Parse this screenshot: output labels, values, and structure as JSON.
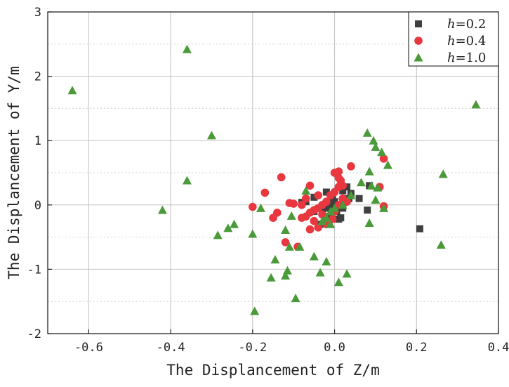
{
  "chart_data": {
    "type": "scatter",
    "xlabel": "The Displancement of Z/m",
    "ylabel": "The Displancement of Y/m",
    "xlim": [
      -0.7,
      0.4
    ],
    "ylim": [
      -2,
      3
    ],
    "x_ticks": [
      -0.6,
      -0.4,
      -0.2,
      0.0,
      0.2,
      0.4
    ],
    "x_tick_labels": [
      "-0.6",
      "-0.4",
      "-0.2",
      "0.0",
      "0.2",
      "0.4"
    ],
    "y_ticks": [
      -2,
      -1,
      0,
      1,
      2,
      3
    ],
    "y_tick_labels": [
      "-2",
      "-1",
      "0",
      "1",
      "2",
      "3"
    ],
    "grid": true,
    "legend_position": "top-right",
    "series": [
      {
        "name": "h=0.2",
        "legend_var": "h",
        "legend_value": "=0.2",
        "marker": "square",
        "color": "#3f3f3f",
        "points": [
          [
            0.208,
            -0.37
          ],
          [
            0.085,
            0.3
          ],
          [
            0.08,
            -0.08
          ],
          [
            0.06,
            0.1
          ],
          [
            0.04,
            0.18
          ],
          [
            0.03,
            0.28
          ],
          [
            0.035,
            0.1
          ],
          [
            0.02,
            0.22
          ],
          [
            0.02,
            0.0
          ],
          [
            0.02,
            -0.05
          ],
          [
            0.01,
            -0.22
          ],
          [
            0.005,
            -0.1
          ],
          [
            0.0,
            0.05
          ],
          [
            -0.01,
            0.0
          ],
          [
            -0.02,
            0.2
          ],
          [
            -0.02,
            -0.05
          ],
          [
            -0.03,
            -0.1
          ],
          [
            -0.035,
            -0.3
          ],
          [
            -0.05,
            0.12
          ],
          [
            -0.05,
            -0.1
          ],
          [
            -0.015,
            -0.18
          ],
          [
            0.015,
            -0.2
          ],
          [
            0.025,
            0.08
          ],
          [
            -0.005,
            0.1
          ],
          [
            -0.07,
            0.05
          ],
          [
            -0.08,
            0.04
          ]
        ]
      },
      {
        "name": "h=0.4",
        "legend_var": "h",
        "legend_value": "=0.4",
        "marker": "circle",
        "color": "#e8373e",
        "points": [
          [
            0.12,
            0.72
          ],
          [
            0.11,
            0.28
          ],
          [
            0.12,
            -0.02
          ],
          [
            0.04,
            0.6
          ],
          [
            0.0,
            0.5
          ],
          [
            0.01,
            0.52
          ],
          [
            0.01,
            0.42
          ],
          [
            0.02,
            0.3
          ],
          [
            0.01,
            0.28
          ],
          [
            0.0,
            0.2
          ],
          [
            -0.01,
            0.15
          ],
          [
            0.02,
            0.1
          ],
          [
            0.03,
            0.05
          ],
          [
            -0.02,
            0.05
          ],
          [
            -0.03,
            0.0
          ],
          [
            -0.04,
            -0.05
          ],
          [
            -0.05,
            -0.08
          ],
          [
            -0.06,
            -0.12
          ],
          [
            -0.07,
            -0.18
          ],
          [
            -0.08,
            -0.2
          ],
          [
            -0.1,
            0.02
          ],
          [
            -0.11,
            0.03
          ],
          [
            -0.13,
            0.43
          ],
          [
            -0.17,
            0.19
          ],
          [
            -0.2,
            -0.03
          ],
          [
            -0.14,
            -0.12
          ],
          [
            -0.15,
            -0.2
          ],
          [
            -0.12,
            -0.58
          ],
          [
            -0.09,
            -0.65
          ],
          [
            -0.06,
            -0.38
          ],
          [
            -0.04,
            -0.35
          ],
          [
            -0.02,
            -0.3
          ],
          [
            -0.06,
            0.3
          ],
          [
            -0.08,
            0.0
          ],
          [
            -0.05,
            -0.25
          ],
          [
            0.0,
            -0.1
          ],
          [
            0.01,
            0.0
          ],
          [
            -0.03,
            -0.15
          ],
          [
            -0.04,
            0.15
          ],
          [
            -0.07,
            0.1
          ],
          [
            0.015,
            0.38
          ],
          [
            -0.005,
            -0.22
          ]
        ]
      },
      {
        "name": "h=1.0",
        "legend_var": "h",
        "legend_value": "=1.0",
        "marker": "triangle",
        "color": "#4a9a3a",
        "points": [
          [
            -0.64,
            1.78
          ],
          [
            -0.36,
            2.42
          ],
          [
            -0.3,
            1.08
          ],
          [
            -0.36,
            0.38
          ],
          [
            -0.42,
            -0.08
          ],
          [
            -0.285,
            -0.47
          ],
          [
            -0.26,
            -0.36
          ],
          [
            -0.245,
            -0.3
          ],
          [
            -0.2,
            -0.45
          ],
          [
            -0.18,
            -0.05
          ],
          [
            -0.195,
            -1.65
          ],
          [
            -0.155,
            -1.13
          ],
          [
            -0.145,
            -0.85
          ],
          [
            -0.12,
            -1.1
          ],
          [
            -0.115,
            -1.02
          ],
          [
            -0.12,
            -0.39
          ],
          [
            -0.11,
            -0.65
          ],
          [
            -0.105,
            -0.17
          ],
          [
            -0.095,
            -1.45
          ],
          [
            -0.085,
            -0.65
          ],
          [
            -0.07,
            0.22
          ],
          [
            -0.05,
            -0.8
          ],
          [
            -0.035,
            -1.05
          ],
          [
            -0.02,
            -0.88
          ],
          [
            0.01,
            -1.2
          ],
          [
            0.03,
            -1.07
          ],
          [
            -0.03,
            -0.25
          ],
          [
            -0.01,
            -0.1
          ],
          [
            0.0,
            -0.05
          ],
          [
            0.02,
            0.0
          ],
          [
            0.04,
            0.15
          ],
          [
            0.065,
            0.35
          ],
          [
            0.08,
            1.12
          ],
          [
            0.095,
            1.0
          ],
          [
            0.1,
            0.9
          ],
          [
            0.115,
            0.82
          ],
          [
            0.085,
            0.52
          ],
          [
            0.09,
            0.3
          ],
          [
            0.105,
            0.27
          ],
          [
            0.1,
            0.08
          ],
          [
            0.12,
            -0.05
          ],
          [
            0.085,
            -0.28
          ],
          [
            0.13,
            0.62
          ],
          [
            0.265,
            0.48
          ],
          [
            0.26,
            -0.62
          ],
          [
            0.345,
            1.56
          ],
          [
            -0.01,
            -0.3
          ],
          [
            -0.02,
            -0.2
          ]
        ]
      }
    ]
  }
}
